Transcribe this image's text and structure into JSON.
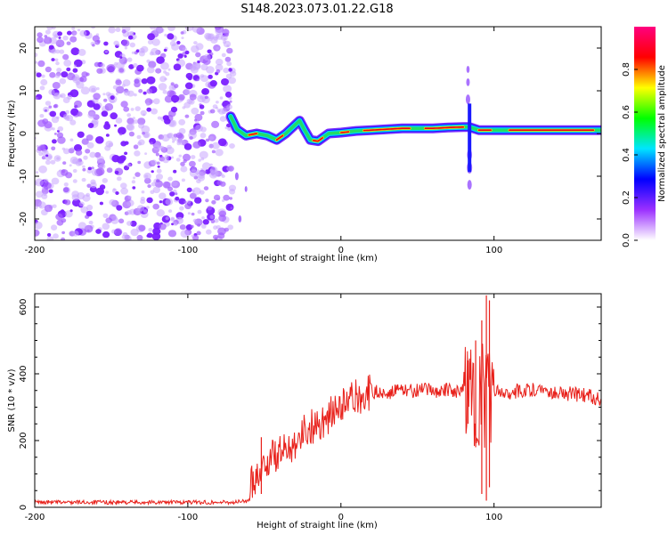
{
  "title": "S148.2023.073.01.22.G18",
  "chart_data": [
    {
      "type": "heatmap",
      "xlabel": "Height of straight line (km)",
      "ylabel": "Frequency (Hz)",
      "xlim": [
        -200,
        170
      ],
      "ylim": [
        -25,
        25
      ],
      "x_ticks": [
        -200,
        -100,
        0,
        100
      ],
      "y_ticks": [
        -20,
        -10,
        0,
        10,
        20
      ],
      "colorbar": {
        "label": "Normalized spectral amplitude",
        "range": [
          0,
          1
        ],
        "ticks": [
          "0.0",
          "0.2",
          "0.4",
          "0.6",
          "0.8"
        ],
        "colors": [
          "#ffffff",
          "#9b30ff",
          "#0000ff",
          "#00e5ff",
          "#00ff00",
          "#ffff00",
          "#ff0000",
          "#ff007f"
        ]
      },
      "noise_region_x": [
        -200,
        -70
      ],
      "ridge": {
        "x": [
          -72,
          -68,
          -62,
          -55,
          -48,
          -42,
          -36,
          -30,
          -27,
          -24,
          -20,
          -15,
          -8,
          0,
          10,
          20,
          30,
          40,
          50,
          60,
          70,
          80,
          84,
          90,
          100,
          110,
          120,
          130,
          140,
          150,
          160,
          170
        ],
        "y": [
          4,
          1,
          -0.5,
          0,
          -0.5,
          -1.5,
          0,
          2,
          3,
          1,
          -1.5,
          -1.8,
          0,
          0.2,
          0.6,
          0.8,
          1.0,
          1.2,
          1.2,
          1.2,
          1.4,
          1.5,
          1.5,
          0.8,
          0.8,
          0.8,
          0.8,
          0.8,
          0.8,
          0.8,
          0.8,
          0.8
        ]
      }
    },
    {
      "type": "line",
      "xlabel": "Height of straight line (km)",
      "ylabel": "SNR (10 * v/v)",
      "xlim": [
        -200,
        170
      ],
      "ylim": [
        0,
        640
      ],
      "x_ticks": [
        -200,
        -100,
        0,
        100
      ],
      "y_ticks": [
        0,
        200,
        400,
        600
      ],
      "series": [
        {
          "color": "#e8201a",
          "x": [
            -200,
            -150,
            -100,
            -70,
            -60,
            -58,
            -52,
            -45,
            -40,
            -35,
            -30,
            -25,
            -20,
            -15,
            -10,
            -5,
            0,
            5,
            10,
            20,
            30,
            40,
            50,
            60,
            70,
            80,
            84,
            88,
            92,
            95,
            98,
            102,
            110,
            120,
            130,
            140,
            150,
            160,
            170
          ],
          "y": [
            15,
            15,
            15,
            15,
            20,
            80,
            120,
            150,
            160,
            175,
            200,
            225,
            240,
            250,
            265,
            285,
            300,
            315,
            330,
            345,
            345,
            350,
            350,
            350,
            350,
            350,
            350,
            350,
            340,
            330,
            345,
            350,
            345,
            350,
            355,
            345,
            340,
            335,
            325
          ],
          "spikes": [
            {
              "x": -52,
              "min": 40,
              "max": 210
            },
            {
              "x": 83,
              "min": 250,
              "max": 440
            },
            {
              "x": 88,
              "min": 180,
              "max": 500
            },
            {
              "x": 92,
              "min": 40,
              "max": 560
            },
            {
              "x": 95,
              "min": 20,
              "max": 635
            },
            {
              "x": 97,
              "min": 60,
              "max": 620
            }
          ]
        }
      ]
    }
  ]
}
